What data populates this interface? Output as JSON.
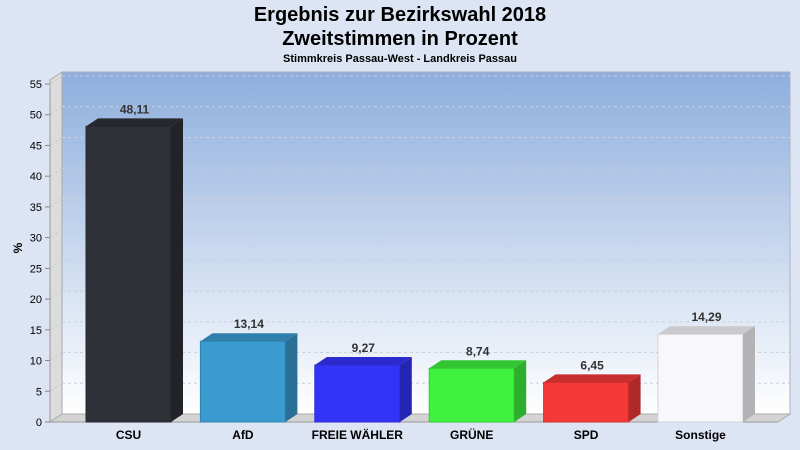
{
  "chart_data": {
    "type": "bar",
    "title": "Ergebnis zur Bezirkswahl 2018",
    "subtitle": "Zweitstimmen in Prozent",
    "caption": "Stimmkreis Passau-West - Landkreis Passau",
    "xlabel": "",
    "ylabel": "%",
    "ylim": [
      0,
      55
    ],
    "yticks": [
      0,
      5,
      10,
      15,
      20,
      25,
      30,
      35,
      40,
      45,
      50,
      55
    ],
    "grid": true,
    "categories": [
      "CSU",
      "AfD",
      "FREIE WÄHLER",
      "GRÜNE",
      "SPD",
      "Sonstige"
    ],
    "values": [
      48.11,
      13.14,
      9.27,
      8.74,
      6.45,
      14.29
    ],
    "labels": [
      "48,11",
      "13,14",
      "9,27",
      "8,74",
      "6,45",
      "14,29"
    ],
    "colors": [
      "#2e3138",
      "#3a9bd0",
      "#3434f8",
      "#3ef23e",
      "#f53838",
      "#f8f8fc"
    ]
  }
}
